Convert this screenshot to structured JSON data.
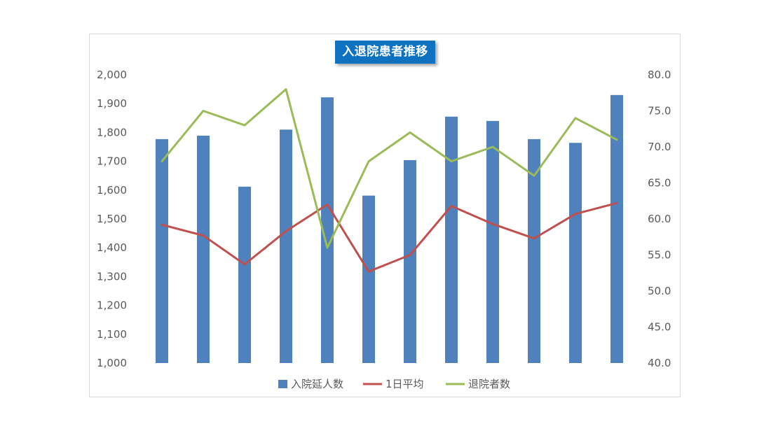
{
  "chart_data": {
    "type": "bar",
    "title": "入退院患者推移",
    "categories": [
      "",
      "",
      "",
      "",
      "",
      "",
      "",
      "",
      "",
      "",
      "",
      ""
    ],
    "y_left": {
      "ylim": [
        1000,
        2000
      ],
      "ticks": [
        "1,000",
        "1,100",
        "1,200",
        "1,300",
        "1,400",
        "1,500",
        "1,600",
        "1,700",
        "1,800",
        "1,900",
        "2,000"
      ]
    },
    "y_right": {
      "ylim": [
        40,
        80
      ],
      "ticks": [
        "40.0",
        "45.0",
        "50.0",
        "55.0",
        "60.0",
        "65.0",
        "70.0",
        "75.0",
        "80.0"
      ]
    },
    "series": [
      {
        "name": "入院延人数",
        "type": "bar",
        "axis": "left",
        "color": "#4f81bd",
        "values": [
          1777,
          1789,
          1612,
          1810,
          1922,
          1581,
          1704,
          1855,
          1840,
          1777,
          1764,
          1930
        ]
      },
      {
        "name": "1日平均",
        "type": "line",
        "axis": "right",
        "color": "#c0504d",
        "values": [
          59.2,
          57.7,
          53.7,
          58.3,
          62.0,
          52.7,
          55.0,
          61.8,
          59.3,
          57.3,
          60.7,
          62.2
        ]
      },
      {
        "name": "退院者数",
        "type": "line",
        "axis": "right",
        "color": "#9bbb59",
        "values": [
          68,
          75,
          73,
          78,
          56,
          68,
          72,
          68,
          70,
          66,
          74,
          71
        ]
      }
    ],
    "grid": false,
    "legend_position": "bottom"
  }
}
